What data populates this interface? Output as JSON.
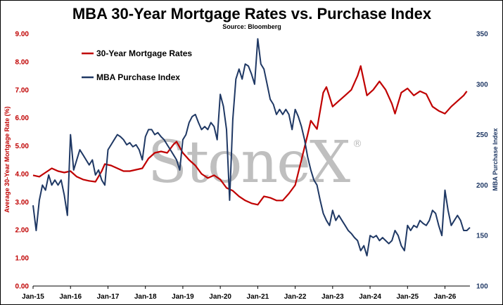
{
  "chart_data": {
    "type": "line",
    "title": "MBA 30-Year Mortgage Rates vs. Purchase Index",
    "subtitle": "Source: Bloomberg",
    "watermark": "StoneX",
    "watermark_mark": "®",
    "ylabel_left": "Average 30-Year Mortgage Rate (%)",
    "ylabel_right": "MBA Purchase Index",
    "ylim_left": [
      0,
      9
    ],
    "ylim_right": [
      100,
      350
    ],
    "left_ticks": [
      "0.00",
      "1.00",
      "2.00",
      "3.00",
      "4.00",
      "5.00",
      "6.00",
      "7.00",
      "8.00",
      "9.00"
    ],
    "right_ticks": [
      "100",
      "150",
      "200",
      "250",
      "300",
      "350"
    ],
    "x_ticks": [
      "Jan-15",
      "Jan-16",
      "Jan-17",
      "Jan-18",
      "Jan-19",
      "Jan-20",
      "Jan-21",
      "Jan-22",
      "Jan-23",
      "Jan-24",
      "Jan-25",
      "Jan-26"
    ],
    "xlim": [
      "2015-01",
      "2026-09"
    ],
    "grid": false,
    "legend_placement": "top-left",
    "series": [
      {
        "name": "30-Year Mortgage Rates",
        "axis": "left",
        "color": "#c00000",
        "points": [
          [
            "2015-01",
            3.95
          ],
          [
            "2015-03",
            3.9
          ],
          [
            "2015-05",
            4.05
          ],
          [
            "2015-07",
            4.2
          ],
          [
            "2015-09",
            4.1
          ],
          [
            "2015-11",
            4.05
          ],
          [
            "2016-01",
            4.1
          ],
          [
            "2016-03",
            3.9
          ],
          [
            "2016-05",
            3.8
          ],
          [
            "2016-07",
            3.75
          ],
          [
            "2016-09",
            3.72
          ],
          [
            "2016-11",
            4.1
          ],
          [
            "2016-12",
            4.35
          ],
          [
            "2017-02",
            4.3
          ],
          [
            "2017-04",
            4.2
          ],
          [
            "2017-06",
            4.1
          ],
          [
            "2017-08",
            4.1
          ],
          [
            "2017-10",
            4.15
          ],
          [
            "2017-12",
            4.2
          ],
          [
            "2018-02",
            4.55
          ],
          [
            "2018-04",
            4.75
          ],
          [
            "2018-06",
            4.8
          ],
          [
            "2018-08",
            4.75
          ],
          [
            "2018-10",
            5.05
          ],
          [
            "2018-11",
            5.15
          ],
          [
            "2019-01",
            4.75
          ],
          [
            "2019-03",
            4.5
          ],
          [
            "2019-05",
            4.3
          ],
          [
            "2019-07",
            4.0
          ],
          [
            "2019-09",
            3.85
          ],
          [
            "2019-11",
            3.95
          ],
          [
            "2020-01",
            3.8
          ],
          [
            "2020-03",
            3.5
          ],
          [
            "2020-05",
            3.4
          ],
          [
            "2020-07",
            3.2
          ],
          [
            "2020-09",
            3.05
          ],
          [
            "2020-11",
            2.95
          ],
          [
            "2021-01",
            2.9
          ],
          [
            "2021-03",
            3.2
          ],
          [
            "2021-05",
            3.15
          ],
          [
            "2021-07",
            3.05
          ],
          [
            "2021-09",
            3.05
          ],
          [
            "2021-11",
            3.3
          ],
          [
            "2022-01",
            3.6
          ],
          [
            "2022-03",
            4.5
          ],
          [
            "2022-05",
            5.4
          ],
          [
            "2022-06",
            5.9
          ],
          [
            "2022-08",
            5.6
          ],
          [
            "2022-10",
            6.9
          ],
          [
            "2022-11",
            7.1
          ],
          [
            "2023-01",
            6.4
          ],
          [
            "2023-03",
            6.6
          ],
          [
            "2023-05",
            6.8
          ],
          [
            "2023-07",
            7.0
          ],
          [
            "2023-09",
            7.5
          ],
          [
            "2023-10",
            7.85
          ],
          [
            "2023-12",
            6.8
          ],
          [
            "2024-02",
            7.0
          ],
          [
            "2024-04",
            7.3
          ],
          [
            "2024-06",
            7.0
          ],
          [
            "2024-08",
            6.5
          ],
          [
            "2024-09",
            6.15
          ],
          [
            "2024-11",
            6.9
          ],
          [
            "2025-01",
            7.05
          ],
          [
            "2025-03",
            6.8
          ],
          [
            "2025-05",
            6.95
          ],
          [
            "2025-07",
            6.85
          ],
          [
            "2025-09",
            6.4
          ],
          [
            "2025-11",
            6.25
          ],
          [
            "2026-01",
            6.15
          ],
          [
            "2026-03",
            6.4
          ],
          [
            "2026-05",
            6.6
          ],
          [
            "2026-07",
            6.8
          ],
          [
            "2026-08",
            6.95
          ]
        ]
      },
      {
        "name": "MBA Purchase Index",
        "axis": "right",
        "color": "#1f3864",
        "points": [
          [
            "2015-01",
            180
          ],
          [
            "2015-02",
            155
          ],
          [
            "2015-03",
            185
          ],
          [
            "2015-04",
            200
          ],
          [
            "2015-05",
            195
          ],
          [
            "2015-06",
            210
          ],
          [
            "2015-07",
            200
          ],
          [
            "2015-08",
            205
          ],
          [
            "2015-09",
            200
          ],
          [
            "2015-10",
            205
          ],
          [
            "2015-11",
            190
          ],
          [
            "2015-12",
            170
          ],
          [
            "2016-01",
            250
          ],
          [
            "2016-02",
            215
          ],
          [
            "2016-03",
            225
          ],
          [
            "2016-04",
            235
          ],
          [
            "2016-05",
            230
          ],
          [
            "2016-06",
            225
          ],
          [
            "2016-07",
            220
          ],
          [
            "2016-08",
            225
          ],
          [
            "2016-09",
            210
          ],
          [
            "2016-10",
            215
          ],
          [
            "2016-11",
            205
          ],
          [
            "2016-12",
            200
          ],
          [
            "2017-01",
            235
          ],
          [
            "2017-02",
            240
          ],
          [
            "2017-03",
            245
          ],
          [
            "2017-04",
            250
          ],
          [
            "2017-05",
            248
          ],
          [
            "2017-06",
            245
          ],
          [
            "2017-07",
            240
          ],
          [
            "2017-08",
            242
          ],
          [
            "2017-09",
            238
          ],
          [
            "2017-10",
            240
          ],
          [
            "2017-11",
            235
          ],
          [
            "2017-12",
            225
          ],
          [
            "2018-01",
            248
          ],
          [
            "2018-02",
            255
          ],
          [
            "2018-03",
            255
          ],
          [
            "2018-04",
            250
          ],
          [
            "2018-05",
            252
          ],
          [
            "2018-06",
            248
          ],
          [
            "2018-07",
            245
          ],
          [
            "2018-08",
            240
          ],
          [
            "2018-09",
            235
          ],
          [
            "2018-10",
            230
          ],
          [
            "2018-11",
            225
          ],
          [
            "2018-12",
            215
          ],
          [
            "2019-01",
            245
          ],
          [
            "2019-02",
            250
          ],
          [
            "2019-03",
            262
          ],
          [
            "2019-04",
            268
          ],
          [
            "2019-05",
            270
          ],
          [
            "2019-06",
            262
          ],
          [
            "2019-07",
            255
          ],
          [
            "2019-08",
            258
          ],
          [
            "2019-09",
            255
          ],
          [
            "2019-10",
            262
          ],
          [
            "2019-11",
            258
          ],
          [
            "2019-12",
            245
          ],
          [
            "2020-01",
            290
          ],
          [
            "2020-02",
            278
          ],
          [
            "2020-03",
            255
          ],
          [
            "2020-04",
            185
          ],
          [
            "2020-05",
            265
          ],
          [
            "2020-06",
            305
          ],
          [
            "2020-07",
            315
          ],
          [
            "2020-08",
            305
          ],
          [
            "2020-09",
            320
          ],
          [
            "2020-10",
            318
          ],
          [
            "2020-11",
            310
          ],
          [
            "2020-12",
            300
          ],
          [
            "2021-01",
            345
          ],
          [
            "2021-02",
            320
          ],
          [
            "2021-03",
            315
          ],
          [
            "2021-04",
            300
          ],
          [
            "2021-05",
            285
          ],
          [
            "2021-06",
            280
          ],
          [
            "2021-07",
            270
          ],
          [
            "2021-08",
            275
          ],
          [
            "2021-09",
            270
          ],
          [
            "2021-10",
            275
          ],
          [
            "2021-11",
            270
          ],
          [
            "2021-12",
            255
          ],
          [
            "2022-01",
            275
          ],
          [
            "2022-02",
            268
          ],
          [
            "2022-03",
            258
          ],
          [
            "2022-04",
            245
          ],
          [
            "2022-05",
            228
          ],
          [
            "2022-06",
            215
          ],
          [
            "2022-07",
            205
          ],
          [
            "2022-08",
            200
          ],
          [
            "2022-09",
            185
          ],
          [
            "2022-10",
            172
          ],
          [
            "2022-11",
            165
          ],
          [
            "2022-12",
            160
          ],
          [
            "2023-01",
            175
          ],
          [
            "2023-02",
            165
          ],
          [
            "2023-03",
            170
          ],
          [
            "2023-04",
            165
          ],
          [
            "2023-05",
            160
          ],
          [
            "2023-06",
            155
          ],
          [
            "2023-07",
            152
          ],
          [
            "2023-08",
            148
          ],
          [
            "2023-09",
            145
          ],
          [
            "2023-10",
            135
          ],
          [
            "2023-11",
            140
          ],
          [
            "2023-12",
            130
          ],
          [
            "2024-01",
            150
          ],
          [
            "2024-02",
            148
          ],
          [
            "2024-03",
            150
          ],
          [
            "2024-04",
            145
          ],
          [
            "2024-05",
            148
          ],
          [
            "2024-06",
            145
          ],
          [
            "2024-07",
            142
          ],
          [
            "2024-08",
            145
          ],
          [
            "2024-09",
            155
          ],
          [
            "2024-10",
            150
          ],
          [
            "2024-11",
            140
          ],
          [
            "2024-12",
            135
          ],
          [
            "2025-01",
            160
          ],
          [
            "2025-02",
            155
          ],
          [
            "2025-03",
            160
          ],
          [
            "2025-04",
            158
          ],
          [
            "2025-05",
            165
          ],
          [
            "2025-06",
            162
          ],
          [
            "2025-07",
            160
          ],
          [
            "2025-08",
            165
          ],
          [
            "2025-09",
            175
          ],
          [
            "2025-10",
            172
          ],
          [
            "2025-11",
            160
          ],
          [
            "2025-12",
            150
          ],
          [
            "2026-01",
            195
          ],
          [
            "2026-02",
            175
          ],
          [
            "2026-03",
            160
          ],
          [
            "2026-04",
            165
          ],
          [
            "2026-05",
            170
          ],
          [
            "2026-06",
            165
          ],
          [
            "2026-07",
            155
          ],
          [
            "2026-08",
            155
          ],
          [
            "2026-09",
            158
          ]
        ]
      }
    ]
  }
}
